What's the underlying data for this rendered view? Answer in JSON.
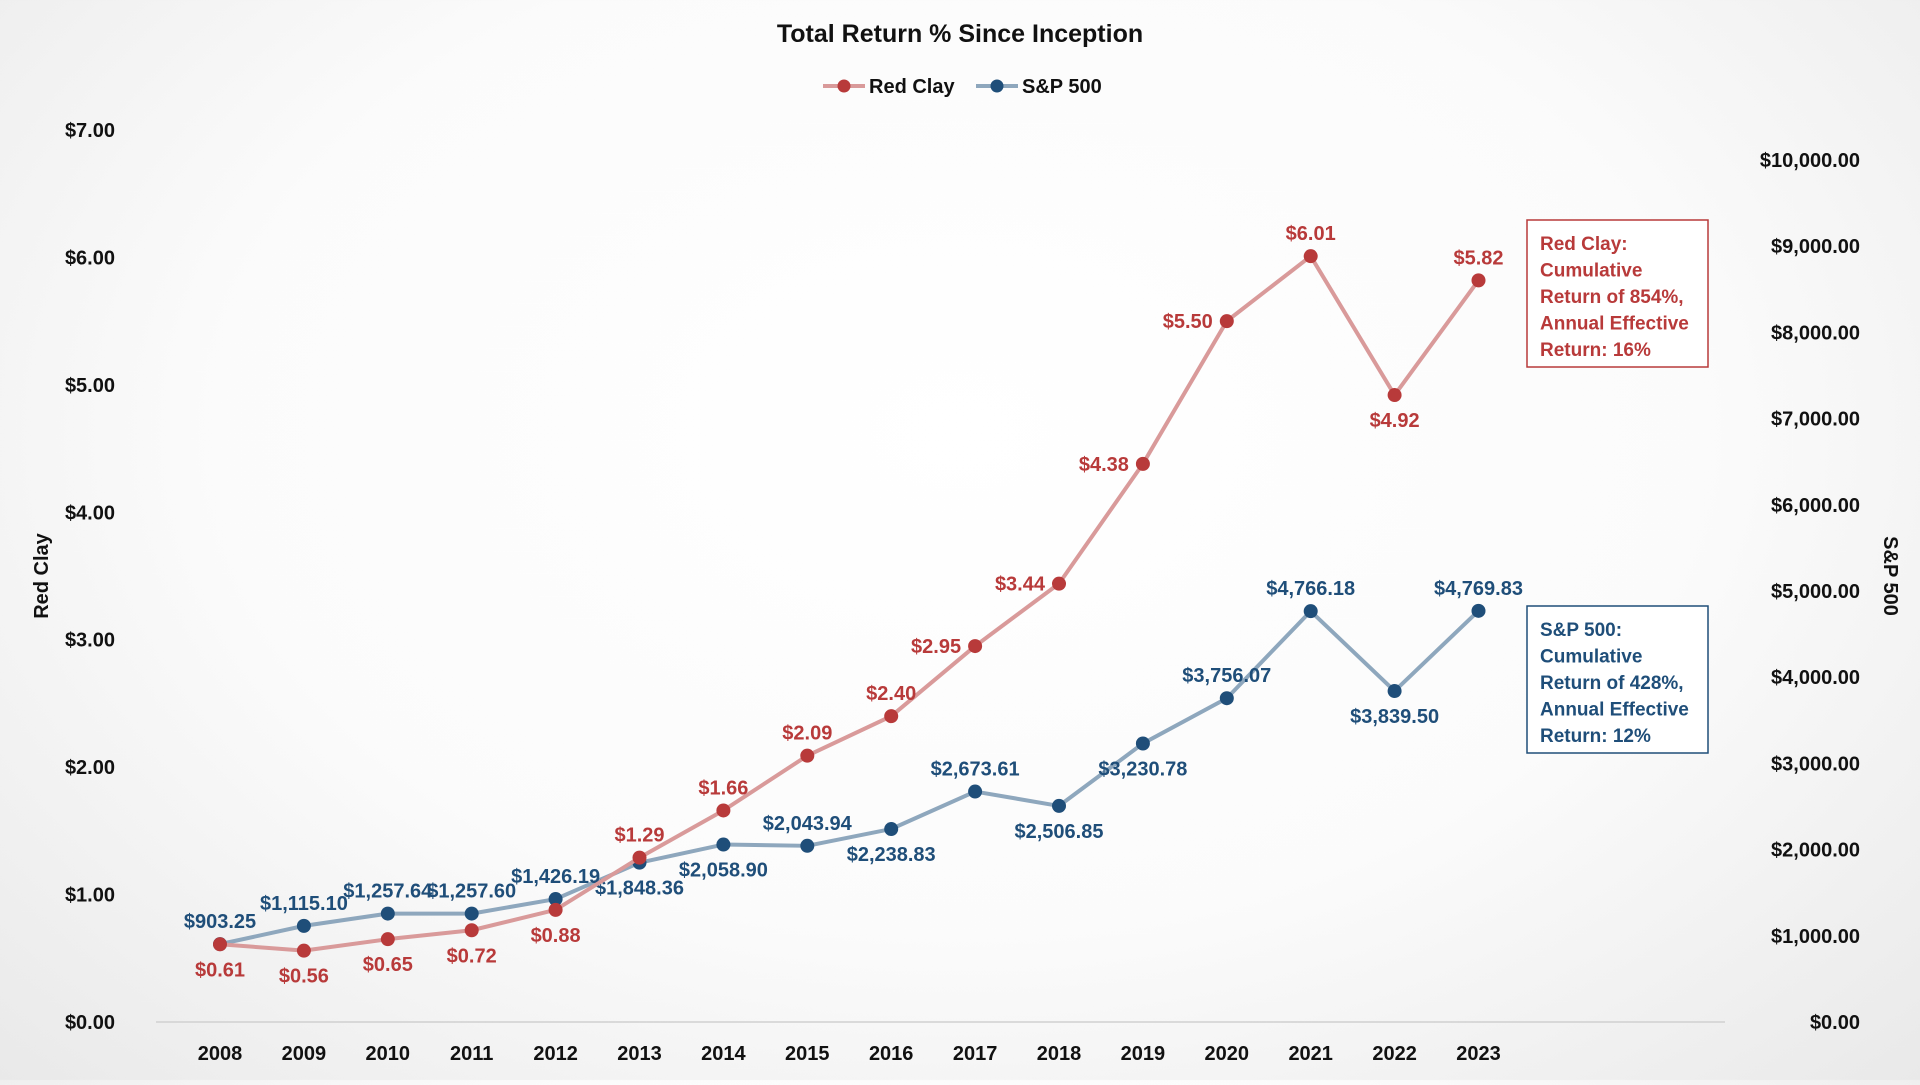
{
  "chart_data": {
    "type": "line",
    "title": "Total Return % Since Inception",
    "categories": [
      "2008",
      "2009",
      "2010",
      "2011",
      "2012",
      "2013",
      "2014",
      "2015",
      "2016",
      "2017",
      "2018",
      "2019",
      "2020",
      "2021",
      "2022",
      "2023"
    ],
    "series": [
      {
        "name": "Red Clay",
        "axis": "left",
        "line_color": "#d99a9a",
        "marker_color": "#b83a3a",
        "label_color": "#b83a3a",
        "values": [
          0.61,
          0.56,
          0.65,
          0.72,
          0.88,
          1.29,
          1.66,
          2.09,
          2.4,
          2.95,
          3.44,
          4.38,
          5.5,
          6.01,
          4.92,
          5.82
        ],
        "labels": [
          "$0.61",
          "$0.56",
          "$0.65",
          "$0.72",
          "$0.88",
          "$1.29",
          "$1.66",
          "$2.09",
          "$2.40",
          "$2.95",
          "$3.44",
          "$4.38",
          "$5.50",
          "$6.01",
          "$4.92",
          "$5.82"
        ],
        "label_pos": [
          "below",
          "below",
          "below",
          "below",
          "below",
          "above",
          "above",
          "above",
          "above",
          "left",
          "left",
          "left",
          "left",
          "above",
          "below",
          "above"
        ]
      },
      {
        "name": "S&P 500",
        "axis": "right",
        "line_color": "#8ea7bd",
        "marker_color": "#1f4e79",
        "label_color": "#1f4e79",
        "values": [
          903.25,
          1115.1,
          1257.64,
          1257.6,
          1426.19,
          1848.36,
          2058.9,
          2043.94,
          2238.83,
          2673.61,
          2506.85,
          3230.78,
          3756.07,
          4766.18,
          3839.5,
          4769.83
        ],
        "labels": [
          "$903.25",
          "$1,115.10",
          "$1,257.64",
          "$1,257.60",
          "$1,426.19",
          "$1,848.36",
          "$2,058.90",
          "$2,043.94",
          "$2,238.83",
          "$2,673.61",
          "$2,506.85",
          "$3,230.78",
          "$3,756.07",
          "$4,766.18",
          "$3,839.50",
          "$4,769.83"
        ],
        "label_pos": [
          "above",
          "above",
          "above",
          "above",
          "above",
          "below",
          "below",
          "above",
          "below",
          "above",
          "below",
          "below",
          "above",
          "above",
          "below",
          "above"
        ]
      }
    ],
    "left_axis": {
      "label": "Red Clay",
      "range": [
        0,
        7
      ],
      "ticks": [
        "$0.00",
        "$1.00",
        "$2.00",
        "$3.00",
        "$4.00",
        "$5.00",
        "$6.00",
        "$7.00"
      ]
    },
    "right_axis": {
      "label": "S&P 500",
      "range": [
        0,
        10000
      ],
      "ticks": [
        "$0.00",
        "$1,000.00",
        "$2,000.00",
        "$3,000.00",
        "$4,000.00",
        "$5,000.00",
        "$6,000.00",
        "$7,000.00",
        "$8,000.00",
        "$9,000.00",
        "$10,000.00"
      ]
    },
    "legend": {
      "placement": "top-center",
      "entries": [
        "Red Clay",
        "S&P 500"
      ]
    },
    "grid": false,
    "annotations": [
      {
        "series": "Red Clay",
        "color": "#b83a3a",
        "lines": [
          "Red Clay:",
          "Cumulative",
          "Return of 854%,",
          "Annual Effective",
          "Return: 16%"
        ]
      },
      {
        "series": "S&P 500",
        "color": "#1f4e79",
        "lines": [
          "S&P 500:",
          "Cumulative",
          "Return of 428%,",
          "Annual Effective",
          "Return: 12%"
        ]
      }
    ]
  }
}
